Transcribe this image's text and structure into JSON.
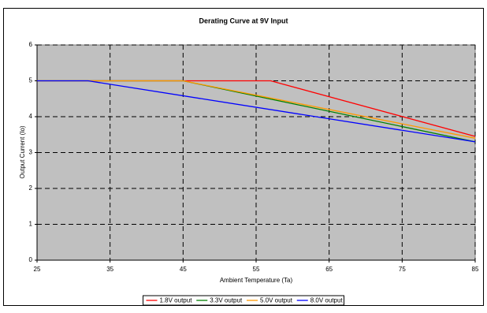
{
  "chart_data": {
    "type": "line",
    "title": "Derating Curve at 9V Input",
    "x_label": "Ambient Temperature (Ta)",
    "y_label": "Output Current (Io)",
    "xlim": [
      25,
      85
    ],
    "xticks": [
      25,
      35,
      45,
      55,
      65,
      75,
      85
    ],
    "ylim": [
      0,
      6
    ],
    "yticks": [
      0,
      1,
      2,
      3,
      4,
      5,
      6
    ],
    "grid": true,
    "legend": "bottom",
    "series": [
      {
        "name": "1.8V output",
        "color": "#ff0000",
        "x": [
          25,
          57,
          85
        ],
        "values": [
          5,
          5,
          3.45
        ]
      },
      {
        "name": "3.3V output",
        "color": "#008000",
        "x": [
          25,
          45,
          85
        ],
        "values": [
          5,
          5,
          3.3
        ]
      },
      {
        "name": "5.0V output",
        "color": "#ff9900",
        "x": [
          25,
          45,
          85
        ],
        "values": [
          5,
          5,
          3.4
        ]
      },
      {
        "name": "8.0V output",
        "color": "#0000ff",
        "x": [
          25,
          32,
          85
        ],
        "values": [
          5,
          5,
          3.3
        ]
      }
    ]
  }
}
